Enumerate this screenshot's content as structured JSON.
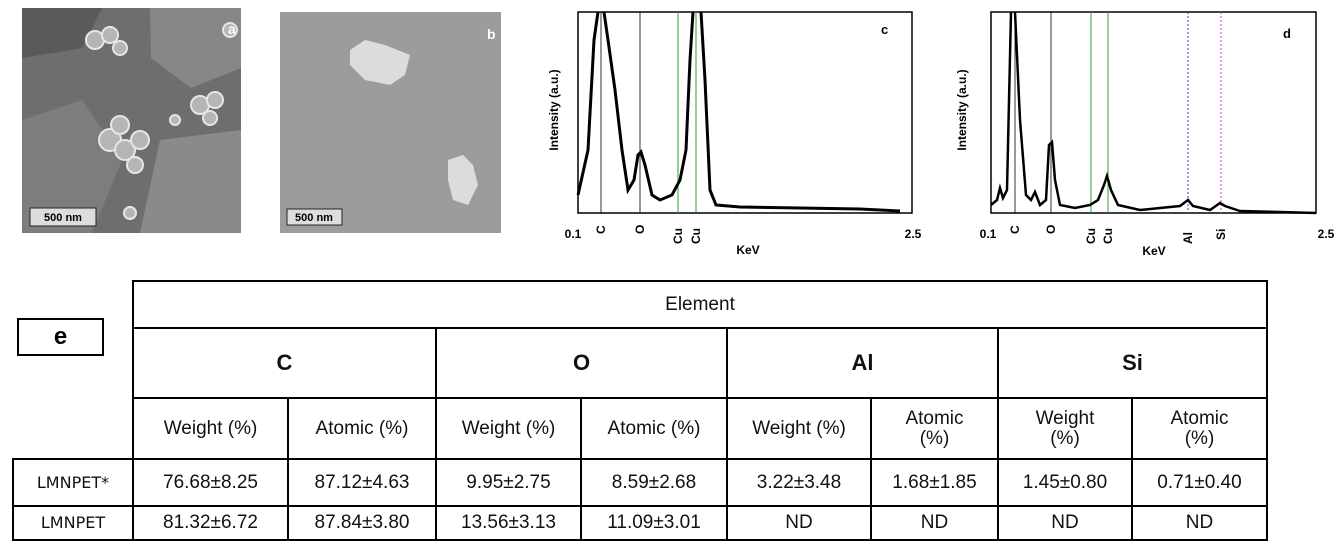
{
  "panels": {
    "a": {
      "label": "a",
      "scale_bar": "500 nm"
    },
    "b": {
      "label": "b",
      "scale_bar": "500 nm"
    },
    "c": {
      "label": "c",
      "y_label": "Intensity (a.u.)",
      "x_label": "KeV",
      "x_start": "0.1",
      "x_end": "2.5",
      "peaks": [
        "C",
        "O",
        "Cu",
        "Cu"
      ]
    },
    "d": {
      "label": "d",
      "y_label": "Intensity (a.u.)",
      "x_label": "KeV",
      "x_start": "0.1",
      "x_end": "2.5",
      "peaks": [
        "C",
        "O",
        "Cu",
        "Cu",
        "Al",
        "Si"
      ]
    }
  },
  "table": {
    "label": "e",
    "group_header": "Element",
    "elements": [
      "C",
      "O",
      "Al",
      "Si"
    ],
    "columns": [
      "Weight (%)",
      "Atomic (%)",
      "Weight (%)",
      "Atomic (%)",
      "Weight (%)",
      "Atomic (%)",
      "Weight (%)",
      "Atomic (%)"
    ],
    "rows": [
      {
        "sample": "LMNPET*",
        "values": [
          "76.68±8.25",
          "87.12±4.63",
          "9.95±2.75",
          "8.59±2.68",
          "3.22±3.48",
          "1.68±1.85",
          "1.45±0.80",
          "0.71±0.40"
        ]
      },
      {
        "sample": "LMNPET",
        "values": [
          "81.32±6.72",
          "87.84±3.80",
          "13.56±3.13",
          "11.09±3.01",
          "ND",
          "ND",
          "ND",
          "ND"
        ]
      }
    ]
  }
}
